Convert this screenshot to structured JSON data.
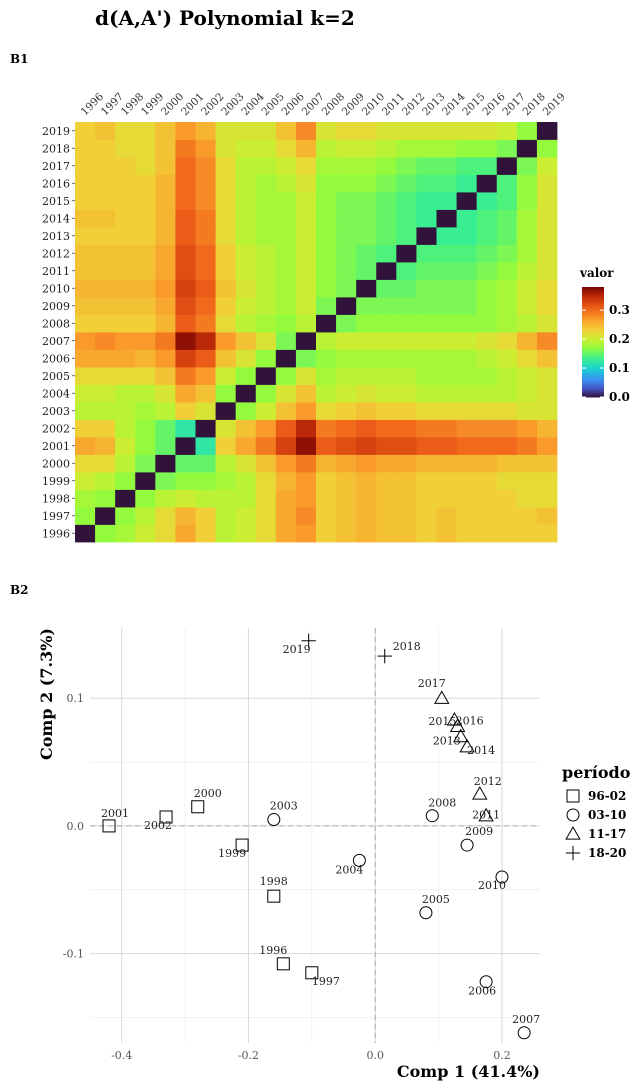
{
  "title": "d(A,A') Polynomial k=2",
  "panels": [
    "B1",
    "B2"
  ],
  "chart_data": [
    {
      "type": "heatmap",
      "panel": "B1",
      "x_labels": [
        "1996",
        "1997",
        "1998",
        "1999",
        "2000",
        "2001",
        "2002",
        "2003",
        "2004",
        "2005",
        "2006",
        "2007",
        "2008",
        "2009",
        "2010",
        "2011",
        "2012",
        "2013",
        "2014",
        "2015",
        "2016",
        "2017",
        "2018",
        "2019"
      ],
      "y_labels": [
        "1996",
        "1997",
        "1998",
        "1999",
        "2000",
        "2001",
        "2002",
        "2003",
        "2004",
        "2005",
        "2006",
        "2007",
        "2008",
        "2009",
        "2010",
        "2011",
        "2012",
        "2013",
        "2014",
        "2015",
        "2016",
        "2017",
        "2018",
        "2019"
      ],
      "values": [
        [
          0,
          0.17,
          0.18,
          0.2,
          0.22,
          0.26,
          0.23,
          0.19,
          0.2,
          0.22,
          0.26,
          0.27,
          0.23,
          0.24,
          0.25,
          0.24,
          0.24,
          0.23,
          0.24,
          0.23,
          0.23,
          0.23,
          0.23,
          0.23
        ],
        [
          0.17,
          0,
          0.17,
          0.19,
          0.22,
          0.25,
          0.23,
          0.19,
          0.2,
          0.22,
          0.26,
          0.28,
          0.23,
          0.24,
          0.25,
          0.24,
          0.24,
          0.23,
          0.24,
          0.23,
          0.23,
          0.23,
          0.23,
          0.24
        ],
        [
          0.18,
          0.17,
          0,
          0.17,
          0.19,
          0.2,
          0.19,
          0.19,
          0.19,
          0.22,
          0.26,
          0.27,
          0.23,
          0.24,
          0.25,
          0.24,
          0.24,
          0.23,
          0.23,
          0.23,
          0.23,
          0.23,
          0.22,
          0.22
        ],
        [
          0.2,
          0.19,
          0.17,
          0,
          0.16,
          0.17,
          0.17,
          0.18,
          0.19,
          0.22,
          0.25,
          0.27,
          0.23,
          0.24,
          0.25,
          0.24,
          0.24,
          0.23,
          0.23,
          0.23,
          0.23,
          0.22,
          0.22,
          0.22
        ],
        [
          0.22,
          0.22,
          0.19,
          0.16,
          0,
          0.15,
          0.15,
          0.19,
          0.21,
          0.24,
          0.27,
          0.29,
          0.25,
          0.26,
          0.27,
          0.26,
          0.26,
          0.25,
          0.25,
          0.25,
          0.25,
          0.24,
          0.24,
          0.24
        ],
        [
          0.26,
          0.25,
          0.2,
          0.17,
          0.15,
          0,
          0.12,
          0.23,
          0.26,
          0.29,
          0.33,
          0.37,
          0.31,
          0.32,
          0.33,
          0.32,
          0.32,
          0.31,
          0.31,
          0.3,
          0.3,
          0.3,
          0.29,
          0.27
        ],
        [
          0.23,
          0.23,
          0.19,
          0.17,
          0.15,
          0.12,
          0,
          0.21,
          0.24,
          0.27,
          0.31,
          0.35,
          0.29,
          0.3,
          0.31,
          0.3,
          0.3,
          0.29,
          0.29,
          0.28,
          0.28,
          0.28,
          0.27,
          0.25
        ],
        [
          0.19,
          0.19,
          0.19,
          0.18,
          0.19,
          0.23,
          0.21,
          0,
          0.17,
          0.2,
          0.24,
          0.27,
          0.22,
          0.23,
          0.24,
          0.23,
          0.23,
          0.22,
          0.22,
          0.22,
          0.22,
          0.22,
          0.21,
          0.21
        ],
        [
          0.2,
          0.2,
          0.19,
          0.19,
          0.21,
          0.26,
          0.24,
          0.17,
          0,
          0.17,
          0.21,
          0.24,
          0.19,
          0.2,
          0.21,
          0.2,
          0.2,
          0.19,
          0.19,
          0.19,
          0.19,
          0.19,
          0.2,
          0.21
        ],
        [
          0.22,
          0.22,
          0.22,
          0.22,
          0.24,
          0.29,
          0.27,
          0.2,
          0.17,
          0,
          0.17,
          0.21,
          0.18,
          0.19,
          0.19,
          0.19,
          0.19,
          0.18,
          0.18,
          0.18,
          0.18,
          0.19,
          0.2,
          0.21
        ],
        [
          0.26,
          0.26,
          0.26,
          0.25,
          0.27,
          0.33,
          0.31,
          0.24,
          0.21,
          0.17,
          0,
          0.16,
          0.17,
          0.18,
          0.18,
          0.18,
          0.18,
          0.18,
          0.18,
          0.18,
          0.19,
          0.2,
          0.22,
          0.24
        ],
        [
          0.27,
          0.28,
          0.27,
          0.27,
          0.29,
          0.37,
          0.35,
          0.27,
          0.24,
          0.21,
          0.16,
          0,
          0.19,
          0.2,
          0.2,
          0.2,
          0.2,
          0.2,
          0.2,
          0.2,
          0.21,
          0.22,
          0.25,
          0.28
        ],
        [
          0.23,
          0.23,
          0.23,
          0.23,
          0.25,
          0.31,
          0.29,
          0.22,
          0.19,
          0.18,
          0.17,
          0.19,
          0,
          0.16,
          0.17,
          0.17,
          0.17,
          0.17,
          0.17,
          0.17,
          0.17,
          0.18,
          0.19,
          0.21
        ],
        [
          0.24,
          0.24,
          0.24,
          0.24,
          0.26,
          0.32,
          0.3,
          0.23,
          0.2,
          0.19,
          0.18,
          0.2,
          0.16,
          0,
          0.16,
          0.16,
          0.16,
          0.16,
          0.16,
          0.16,
          0.17,
          0.18,
          0.2,
          0.22
        ],
        [
          0.25,
          0.25,
          0.25,
          0.25,
          0.27,
          0.33,
          0.31,
          0.24,
          0.21,
          0.19,
          0.18,
          0.2,
          0.17,
          0.16,
          0,
          0.15,
          0.15,
          0.16,
          0.16,
          0.16,
          0.17,
          0.18,
          0.2,
          0.22
        ],
        [
          0.24,
          0.24,
          0.24,
          0.24,
          0.26,
          0.32,
          0.3,
          0.23,
          0.2,
          0.19,
          0.18,
          0.2,
          0.17,
          0.16,
          0.15,
          0,
          0.14,
          0.15,
          0.15,
          0.15,
          0.16,
          0.17,
          0.19,
          0.21
        ],
        [
          0.24,
          0.24,
          0.24,
          0.24,
          0.26,
          0.32,
          0.3,
          0.23,
          0.2,
          0.19,
          0.18,
          0.2,
          0.17,
          0.16,
          0.15,
          0.14,
          0,
          0.14,
          0.14,
          0.14,
          0.15,
          0.16,
          0.18,
          0.21
        ],
        [
          0.23,
          0.23,
          0.23,
          0.23,
          0.25,
          0.31,
          0.29,
          0.22,
          0.19,
          0.18,
          0.18,
          0.2,
          0.17,
          0.16,
          0.16,
          0.15,
          0.14,
          0,
          0.13,
          0.13,
          0.14,
          0.15,
          0.18,
          0.21
        ],
        [
          0.24,
          0.24,
          0.23,
          0.23,
          0.25,
          0.31,
          0.29,
          0.22,
          0.19,
          0.18,
          0.18,
          0.2,
          0.17,
          0.16,
          0.16,
          0.15,
          0.14,
          0.13,
          0,
          0.13,
          0.14,
          0.15,
          0.18,
          0.21
        ],
        [
          0.23,
          0.23,
          0.23,
          0.23,
          0.25,
          0.3,
          0.28,
          0.22,
          0.19,
          0.18,
          0.18,
          0.2,
          0.17,
          0.16,
          0.16,
          0.15,
          0.14,
          0.13,
          0.13,
          0,
          0.13,
          0.14,
          0.17,
          0.21
        ],
        [
          0.23,
          0.23,
          0.23,
          0.23,
          0.25,
          0.3,
          0.28,
          0.22,
          0.19,
          0.18,
          0.19,
          0.21,
          0.17,
          0.17,
          0.17,
          0.16,
          0.15,
          0.14,
          0.14,
          0.13,
          0,
          0.14,
          0.17,
          0.21
        ],
        [
          0.23,
          0.23,
          0.23,
          0.22,
          0.24,
          0.3,
          0.28,
          0.22,
          0.19,
          0.19,
          0.2,
          0.22,
          0.18,
          0.18,
          0.18,
          0.17,
          0.16,
          0.15,
          0.15,
          0.14,
          0.14,
          0,
          0.16,
          0.2
        ],
        [
          0.23,
          0.23,
          0.22,
          0.22,
          0.24,
          0.29,
          0.27,
          0.21,
          0.2,
          0.2,
          0.22,
          0.25,
          0.19,
          0.2,
          0.2,
          0.19,
          0.18,
          0.18,
          0.18,
          0.17,
          0.17,
          0.16,
          0,
          0.17
        ],
        [
          0.23,
          0.24,
          0.22,
          0.22,
          0.24,
          0.27,
          0.25,
          0.21,
          0.21,
          0.21,
          0.24,
          0.28,
          0.21,
          0.22,
          0.22,
          0.21,
          0.21,
          0.21,
          0.21,
          0.21,
          0.21,
          0.2,
          0.17,
          0
        ]
      ],
      "colorbar": {
        "title": "valor",
        "ticks": [
          0.0,
          0.1,
          0.2,
          0.3
        ],
        "tick_labels": [
          "0.0",
          "0.1",
          "0.2",
          "0.3"
        ],
        "range": [
          0,
          0.38
        ],
        "placement": "right"
      }
    },
    {
      "type": "scatter",
      "panel": "B2",
      "xlabel": "Comp 1 (41.4%)",
      "ylabel": "Comp 2 (7.3%)",
      "xlim": [
        -0.45,
        0.26
      ],
      "ylim": [
        -0.17,
        0.155
      ],
      "x_ticks": [
        -0.4,
        -0.2,
        0.0,
        0.2
      ],
      "x_tick_labels": [
        "-0.4",
        "-0.2",
        "0.0",
        "0.2"
      ],
      "y_ticks": [
        -0.1,
        0.0,
        0.1
      ],
      "y_tick_labels": [
        "-0.1",
        "0.0",
        "0.1"
      ],
      "grid": true,
      "legend": {
        "title": "período",
        "placement": "right"
      },
      "series": [
        {
          "name": "96-02",
          "marker": "square",
          "points": [
            {
              "label": "1996",
              "x": -0.145,
              "y": -0.108
            },
            {
              "label": "1997",
              "x": -0.1,
              "y": -0.115
            },
            {
              "label": "1998",
              "x": -0.16,
              "y": -0.055
            },
            {
              "label": "1999",
              "x": -0.21,
              "y": -0.015
            },
            {
              "label": "2000",
              "x": -0.28,
              "y": 0.015
            },
            {
              "label": "2001",
              "x": -0.42,
              "y": 0.0
            },
            {
              "label": "2002",
              "x": -0.33,
              "y": 0.007
            }
          ]
        },
        {
          "name": "03-10",
          "marker": "circle",
          "points": [
            {
              "label": "2003",
              "x": -0.16,
              "y": 0.005
            },
            {
              "label": "2004",
              "x": -0.025,
              "y": -0.027
            },
            {
              "label": "2005",
              "x": 0.08,
              "y": -0.068
            },
            {
              "label": "2006",
              "x": 0.175,
              "y": -0.122
            },
            {
              "label": "2007",
              "x": 0.235,
              "y": -0.162
            },
            {
              "label": "2008",
              "x": 0.09,
              "y": 0.008
            },
            {
              "label": "2009",
              "x": 0.145,
              "y": -0.015
            },
            {
              "label": "2010",
              "x": 0.2,
              "y": -0.04
            }
          ]
        },
        {
          "name": "11-17",
          "marker": "triangle",
          "points": [
            {
              "label": "2011",
              "x": 0.175,
              "y": 0.008
            },
            {
              "label": "2012",
              "x": 0.165,
              "y": 0.025
            },
            {
              "label": "2013",
              "x": 0.135,
              "y": 0.07
            },
            {
              "label": "2014",
              "x": 0.145,
              "y": 0.062
            },
            {
              "label": "2015",
              "x": 0.125,
              "y": 0.083
            },
            {
              "label": "2016",
              "x": 0.13,
              "y": 0.078
            },
            {
              "label": "2017",
              "x": 0.105,
              "y": 0.1
            }
          ]
        },
        {
          "name": "18-20",
          "marker": "plus",
          "points": [
            {
              "label": "2018",
              "x": 0.015,
              "y": 0.133
            },
            {
              "label": "2019",
              "x": -0.105,
              "y": 0.145
            }
          ]
        }
      ]
    }
  ]
}
